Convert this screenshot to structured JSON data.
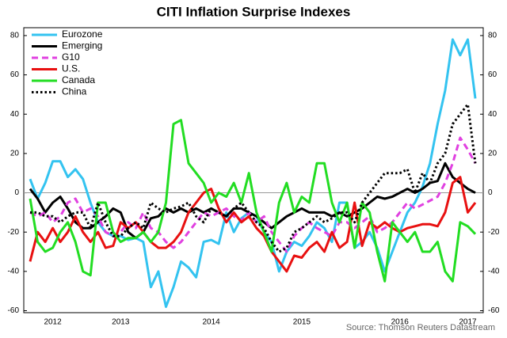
{
  "chart_data": {
    "type": "line",
    "title": "CITI Inflation Surprise Indexes",
    "source": "Source: Thomson Reuters Datastream",
    "categories": [
      null,
      null,
      null,
      "2012",
      null,
      null,
      null,
      null,
      null,
      null,
      null,
      null,
      "2013",
      null,
      null,
      null,
      null,
      null,
      null,
      null,
      null,
      null,
      null,
      null,
      "2014",
      null,
      null,
      null,
      null,
      null,
      null,
      null,
      null,
      null,
      null,
      null,
      "2015",
      null,
      null,
      null,
      null,
      null,
      null,
      null,
      null,
      null,
      null,
      null,
      null,
      "2016",
      null,
      null,
      null,
      null,
      null,
      null,
      null,
      null,
      "2017",
      null
    ],
    "ylim": [
      -61,
      84
    ],
    "yticks": [
      -60,
      -40,
      -20,
      0,
      20,
      40,
      60,
      80
    ],
    "zero_line": true,
    "legend": "upper left",
    "series": [
      {
        "name": "Eurozone",
        "color": "#33c3f0",
        "dash": "solid",
        "values": [
          7,
          -3,
          5,
          16,
          16,
          8,
          12,
          7,
          -5,
          -15,
          -20,
          -22,
          -22,
          -24,
          -23,
          -25,
          -48,
          -40,
          -58,
          -48,
          -35,
          -38,
          -43,
          -25,
          -24,
          -26,
          -10,
          -20,
          -13,
          -10,
          -12,
          -20,
          -25,
          -40,
          -30,
          -25,
          -27,
          -22,
          -15,
          -18,
          -25,
          -5,
          -5,
          -28,
          -25,
          -20,
          -28,
          -40,
          -30,
          -20,
          -10,
          -5,
          3,
          15,
          35,
          52,
          78,
          70,
          78,
          48
        ]
      },
      {
        "name": "Emerging",
        "color": "#000000",
        "dash": "solid",
        "values": [
          2,
          -3,
          -10,
          -5,
          -2,
          -8,
          -15,
          -18,
          -18,
          -15,
          -12,
          -8,
          -10,
          -20,
          -23,
          -20,
          -13,
          -12,
          -8,
          -10,
          -8,
          -10,
          -8,
          -10,
          -8,
          -10,
          -12,
          -8,
          -8,
          -10,
          -12,
          -15,
          -18,
          -15,
          -12,
          -10,
          -8,
          -10,
          -10,
          -10,
          -12,
          -10,
          -12,
          -10,
          -8,
          -5,
          -2,
          -3,
          -2,
          0,
          2,
          0,
          2,
          5,
          6,
          15,
          8,
          5,
          2,
          0
        ]
      },
      {
        "name": "G10",
        "color": "#e040e0",
        "dash": "dashed",
        "values": [
          -10,
          -12,
          -10,
          -15,
          -12,
          -5,
          -3,
          -10,
          -8,
          -12,
          -20,
          -22,
          -20,
          -15,
          -18,
          -10,
          -18,
          -20,
          -25,
          -28,
          -25,
          -20,
          -15,
          -10,
          -12,
          -10,
          -8,
          -12,
          -14,
          -10,
          -15,
          -12,
          -20,
          -25,
          -30,
          -22,
          -18,
          -15,
          -18,
          -20,
          -22,
          -15,
          -15,
          -18,
          -15,
          -12,
          -20,
          -18,
          -15,
          -10,
          -5,
          -8,
          -6,
          -4,
          -2,
          5,
          15,
          28,
          22,
          15
        ]
      },
      {
        "name": "U.S.",
        "color": "#e81010",
        "dash": "solid",
        "values": [
          -35,
          -20,
          -25,
          -18,
          -25,
          -20,
          -12,
          -20,
          -25,
          -20,
          -28,
          -27,
          -15,
          -18,
          -15,
          -20,
          -25,
          -28,
          -28,
          -25,
          -20,
          -10,
          -5,
          0,
          2,
          -8,
          -15,
          -10,
          -15,
          -12,
          -18,
          -22,
          -30,
          -35,
          -40,
          -32,
          -33,
          -28,
          -25,
          -30,
          -20,
          -28,
          -25,
          -5,
          -27,
          -15,
          -18,
          -15,
          -18,
          -20,
          -18,
          -17,
          -16,
          -16,
          -17,
          -10,
          5,
          8,
          -10,
          -5
        ]
      },
      {
        "name": "Canada",
        "color": "#22dd22",
        "dash": "solid",
        "values": [
          -3,
          -25,
          -30,
          -28,
          -20,
          -15,
          -25,
          -40,
          -42,
          -5,
          -5,
          -20,
          -25,
          -23,
          -23,
          -20,
          -25,
          -20,
          -5,
          35,
          37,
          15,
          10,
          5,
          -5,
          0,
          -2,
          5,
          -5,
          10,
          -10,
          -20,
          -30,
          -5,
          5,
          -10,
          -2,
          -5,
          15,
          15,
          -5,
          -15,
          -5,
          -28,
          -5,
          -10,
          -30,
          -45,
          -15,
          -20,
          -25,
          -20,
          -30,
          -30,
          -25,
          -40,
          -45,
          -15,
          -17,
          -21
        ]
      },
      {
        "name": "China",
        "color": "#000000",
        "dash": "dotted",
        "values": [
          -10,
          -10,
          -12,
          -12,
          -15,
          -12,
          -10,
          -10,
          -18,
          -5,
          -15,
          -22,
          -22,
          -18,
          -15,
          -18,
          -5,
          -8,
          -10,
          -8,
          -7,
          -5,
          -12,
          -15,
          -8,
          -10,
          -12,
          -8,
          -5,
          -10,
          -15,
          -18,
          -25,
          -30,
          -28,
          -20,
          -18,
          -15,
          -12,
          -15,
          -13,
          -10,
          -10,
          -15,
          -5,
          0,
          5,
          10,
          10,
          10,
          12,
          0,
          10,
          5,
          15,
          20,
          35,
          40,
          45,
          15
        ]
      }
    ]
  }
}
